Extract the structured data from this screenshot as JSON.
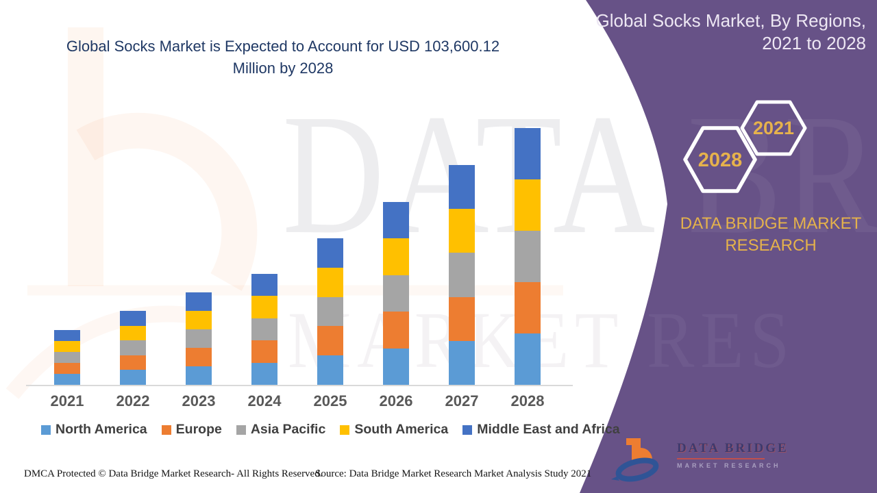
{
  "headline": {
    "line1": "Global Socks Market is Expected to Account for USD 103,600.12",
    "line2": "Million by 2028"
  },
  "right_panel": {
    "title_line1": "Global Socks Market, By Regions,",
    "title_line2": "2021 to 2028",
    "hexagon_back_label": "2021",
    "hexagon_front_label": "2028",
    "brand_line1": "DATA BRIDGE MARKET",
    "brand_line2": "RESEARCH",
    "logo_name": "DATA BRIDGE",
    "logo_subtitle": "MARKET RESEARCH"
  },
  "watermark": {
    "line1": "DATA BRI",
    "line2": "MARKET RES"
  },
  "footer": {
    "left": "DMCA Protected © Data Bridge Market Research- All Rights Reserved.",
    "right": "Source: Data Bridge Market Research Market Analysis Study 2021"
  },
  "colors": {
    "panel_purple": "#675287",
    "gold": "#e5b24b",
    "headline_navy": "#1f3864",
    "axis_gray": "#d9d9d9",
    "label_gray": "#595959",
    "legend_text": "#404040"
  },
  "chart_data": {
    "type": "bar",
    "stacked": true,
    "title": "Global Socks Market, By Regions, 2021 to 2028",
    "categories": [
      "2021",
      "2022",
      "2023",
      "2024",
      "2025",
      "2026",
      "2027",
      "2028"
    ],
    "series": [
      {
        "name": "North America",
        "color": "#5b9bd5",
        "values": [
          4420,
          5967,
          7459,
          8951,
          11824,
          14753,
          17736,
          20720
        ]
      },
      {
        "name": "Europe",
        "color": "#ed7d31",
        "values": [
          4420,
          5967,
          7459,
          8951,
          11824,
          14753,
          17736,
          20720
        ]
      },
      {
        "name": "Asia Pacific",
        "color": "#a5a5a5",
        "values": [
          4420,
          5967,
          7459,
          8951,
          11824,
          14753,
          17736,
          20720
        ]
      },
      {
        "name": "South America",
        "color": "#ffc000",
        "values": [
          4420,
          5967,
          7459,
          8951,
          11824,
          14753,
          17736,
          20720
        ]
      },
      {
        "name": "Middle East and Africa",
        "color": "#4472c4",
        "values": [
          4420,
          5967,
          7459,
          8951,
          11824,
          14753,
          17736,
          20720
        ]
      }
    ],
    "totals_by_year": [
      22101,
      29837,
      37296,
      44755,
      59121,
      73763,
      88682,
      103600
    ],
    "value_unit": "USD Million (estimated from bar heights; 2028 total = 103,600.12)",
    "xlabel": "",
    "ylabel": "",
    "ylim": [
      0,
      110000
    ],
    "grid": false,
    "y_axis_visible": false,
    "legend_position": "bottom"
  }
}
